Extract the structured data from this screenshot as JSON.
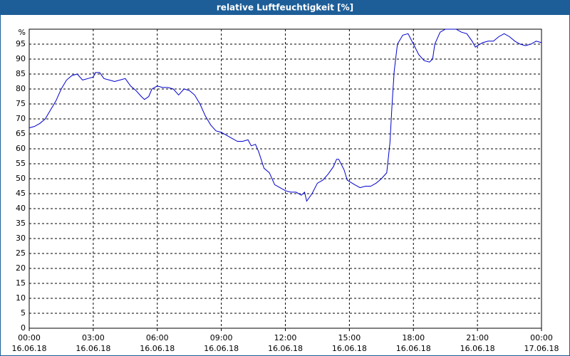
{
  "chart_data": {
    "type": "line",
    "title": "relative Luftfeuchtigkeit [%]",
    "y_unit_label": "%",
    "x": [
      0,
      0.25,
      0.5,
      0.75,
      1.0,
      1.25,
      1.5,
      1.75,
      2.0,
      2.25,
      2.5,
      2.75,
      3.0,
      3.1,
      3.3,
      3.5,
      3.75,
      4.0,
      4.25,
      4.5,
      4.75,
      5.0,
      5.25,
      5.4,
      5.6,
      5.75,
      6.0,
      6.25,
      6.5,
      6.75,
      7.0,
      7.25,
      7.5,
      7.75,
      8.0,
      8.25,
      8.5,
      8.75,
      9.0,
      9.25,
      9.5,
      9.75,
      10.0,
      10.25,
      10.4,
      10.6,
      10.75,
      11.0,
      11.25,
      11.5,
      11.75,
      12.0,
      12.25,
      12.5,
      12.75,
      12.9,
      13.0,
      13.25,
      13.5,
      13.75,
      14.0,
      14.25,
      14.4,
      14.5,
      14.75,
      14.9,
      15.25,
      15.5,
      15.75,
      16.0,
      16.25,
      16.5,
      16.75,
      16.9,
      17.0,
      17.1,
      17.25,
      17.5,
      17.75,
      18.0,
      18.25,
      18.5,
      18.75,
      18.9,
      19.0,
      19.25,
      19.5,
      20.0,
      20.25,
      20.5,
      20.75,
      20.9,
      21.0,
      21.25,
      21.5,
      21.75,
      22.0,
      22.25,
      22.5,
      22.75,
      23.0,
      23.25,
      23.5,
      23.75,
      24.0
    ],
    "series": [
      {
        "name": "relative Luftfeuchtigkeit",
        "color": "#0000cc",
        "values": [
          67,
          67.5,
          68.5,
          70,
          73,
          76,
          80,
          83,
          84.5,
          85,
          83,
          83.5,
          84,
          85.5,
          85.5,
          83.5,
          83,
          82.5,
          83,
          83.5,
          81,
          79.5,
          77.5,
          76.5,
          77.5,
          80,
          81,
          80.5,
          80.5,
          80,
          78,
          80,
          79.5,
          78,
          75,
          71,
          68,
          66,
          65.5,
          64.5,
          63.5,
          62.5,
          62.5,
          63,
          61,
          61.5,
          59,
          53.5,
          52,
          48,
          47,
          46,
          45.5,
          45.5,
          44.5,
          45.5,
          42.5,
          45,
          48.5,
          49.5,
          51.5,
          54,
          56.5,
          56.5,
          53,
          49.5,
          48,
          47,
          47.5,
          47.5,
          48.5,
          50,
          52,
          62,
          75,
          86,
          95,
          98,
          98.5,
          95,
          91.5,
          89.5,
          89,
          90,
          95,
          99,
          100,
          100,
          99,
          98.5,
          96,
          94,
          94.5,
          95.5,
          96,
          96,
          97.5,
          98.5,
          97.5,
          96,
          95,
          94.5,
          95,
          96,
          95.5
        ]
      }
    ],
    "xlim": [
      0,
      24
    ],
    "xticks": [
      {
        "value": 0,
        "label": [
          "00:00",
          "16.06.18"
        ]
      },
      {
        "value": 3,
        "label": [
          "03:00",
          "16.06.18"
        ]
      },
      {
        "value": 6,
        "label": [
          "06:00",
          "16.06.18"
        ]
      },
      {
        "value": 9,
        "label": [
          "09:00",
          "16.06.18"
        ]
      },
      {
        "value": 12,
        "label": [
          "12:00",
          "16.06.18"
        ]
      },
      {
        "value": 15,
        "label": [
          "15:00",
          "16.06.18"
        ]
      },
      {
        "value": 18,
        "label": [
          "18:00",
          "16.06.18"
        ]
      },
      {
        "value": 21,
        "label": [
          "21:00",
          "16.06.18"
        ]
      },
      {
        "value": 24,
        "label": [
          "00:00",
          "17.06.18"
        ]
      }
    ],
    "ylim": [
      0,
      100
    ],
    "yticks": [
      0,
      5,
      10,
      15,
      20,
      25,
      30,
      35,
      40,
      45,
      50,
      55,
      60,
      65,
      70,
      75,
      80,
      85,
      90,
      95
    ],
    "grid": true
  }
}
